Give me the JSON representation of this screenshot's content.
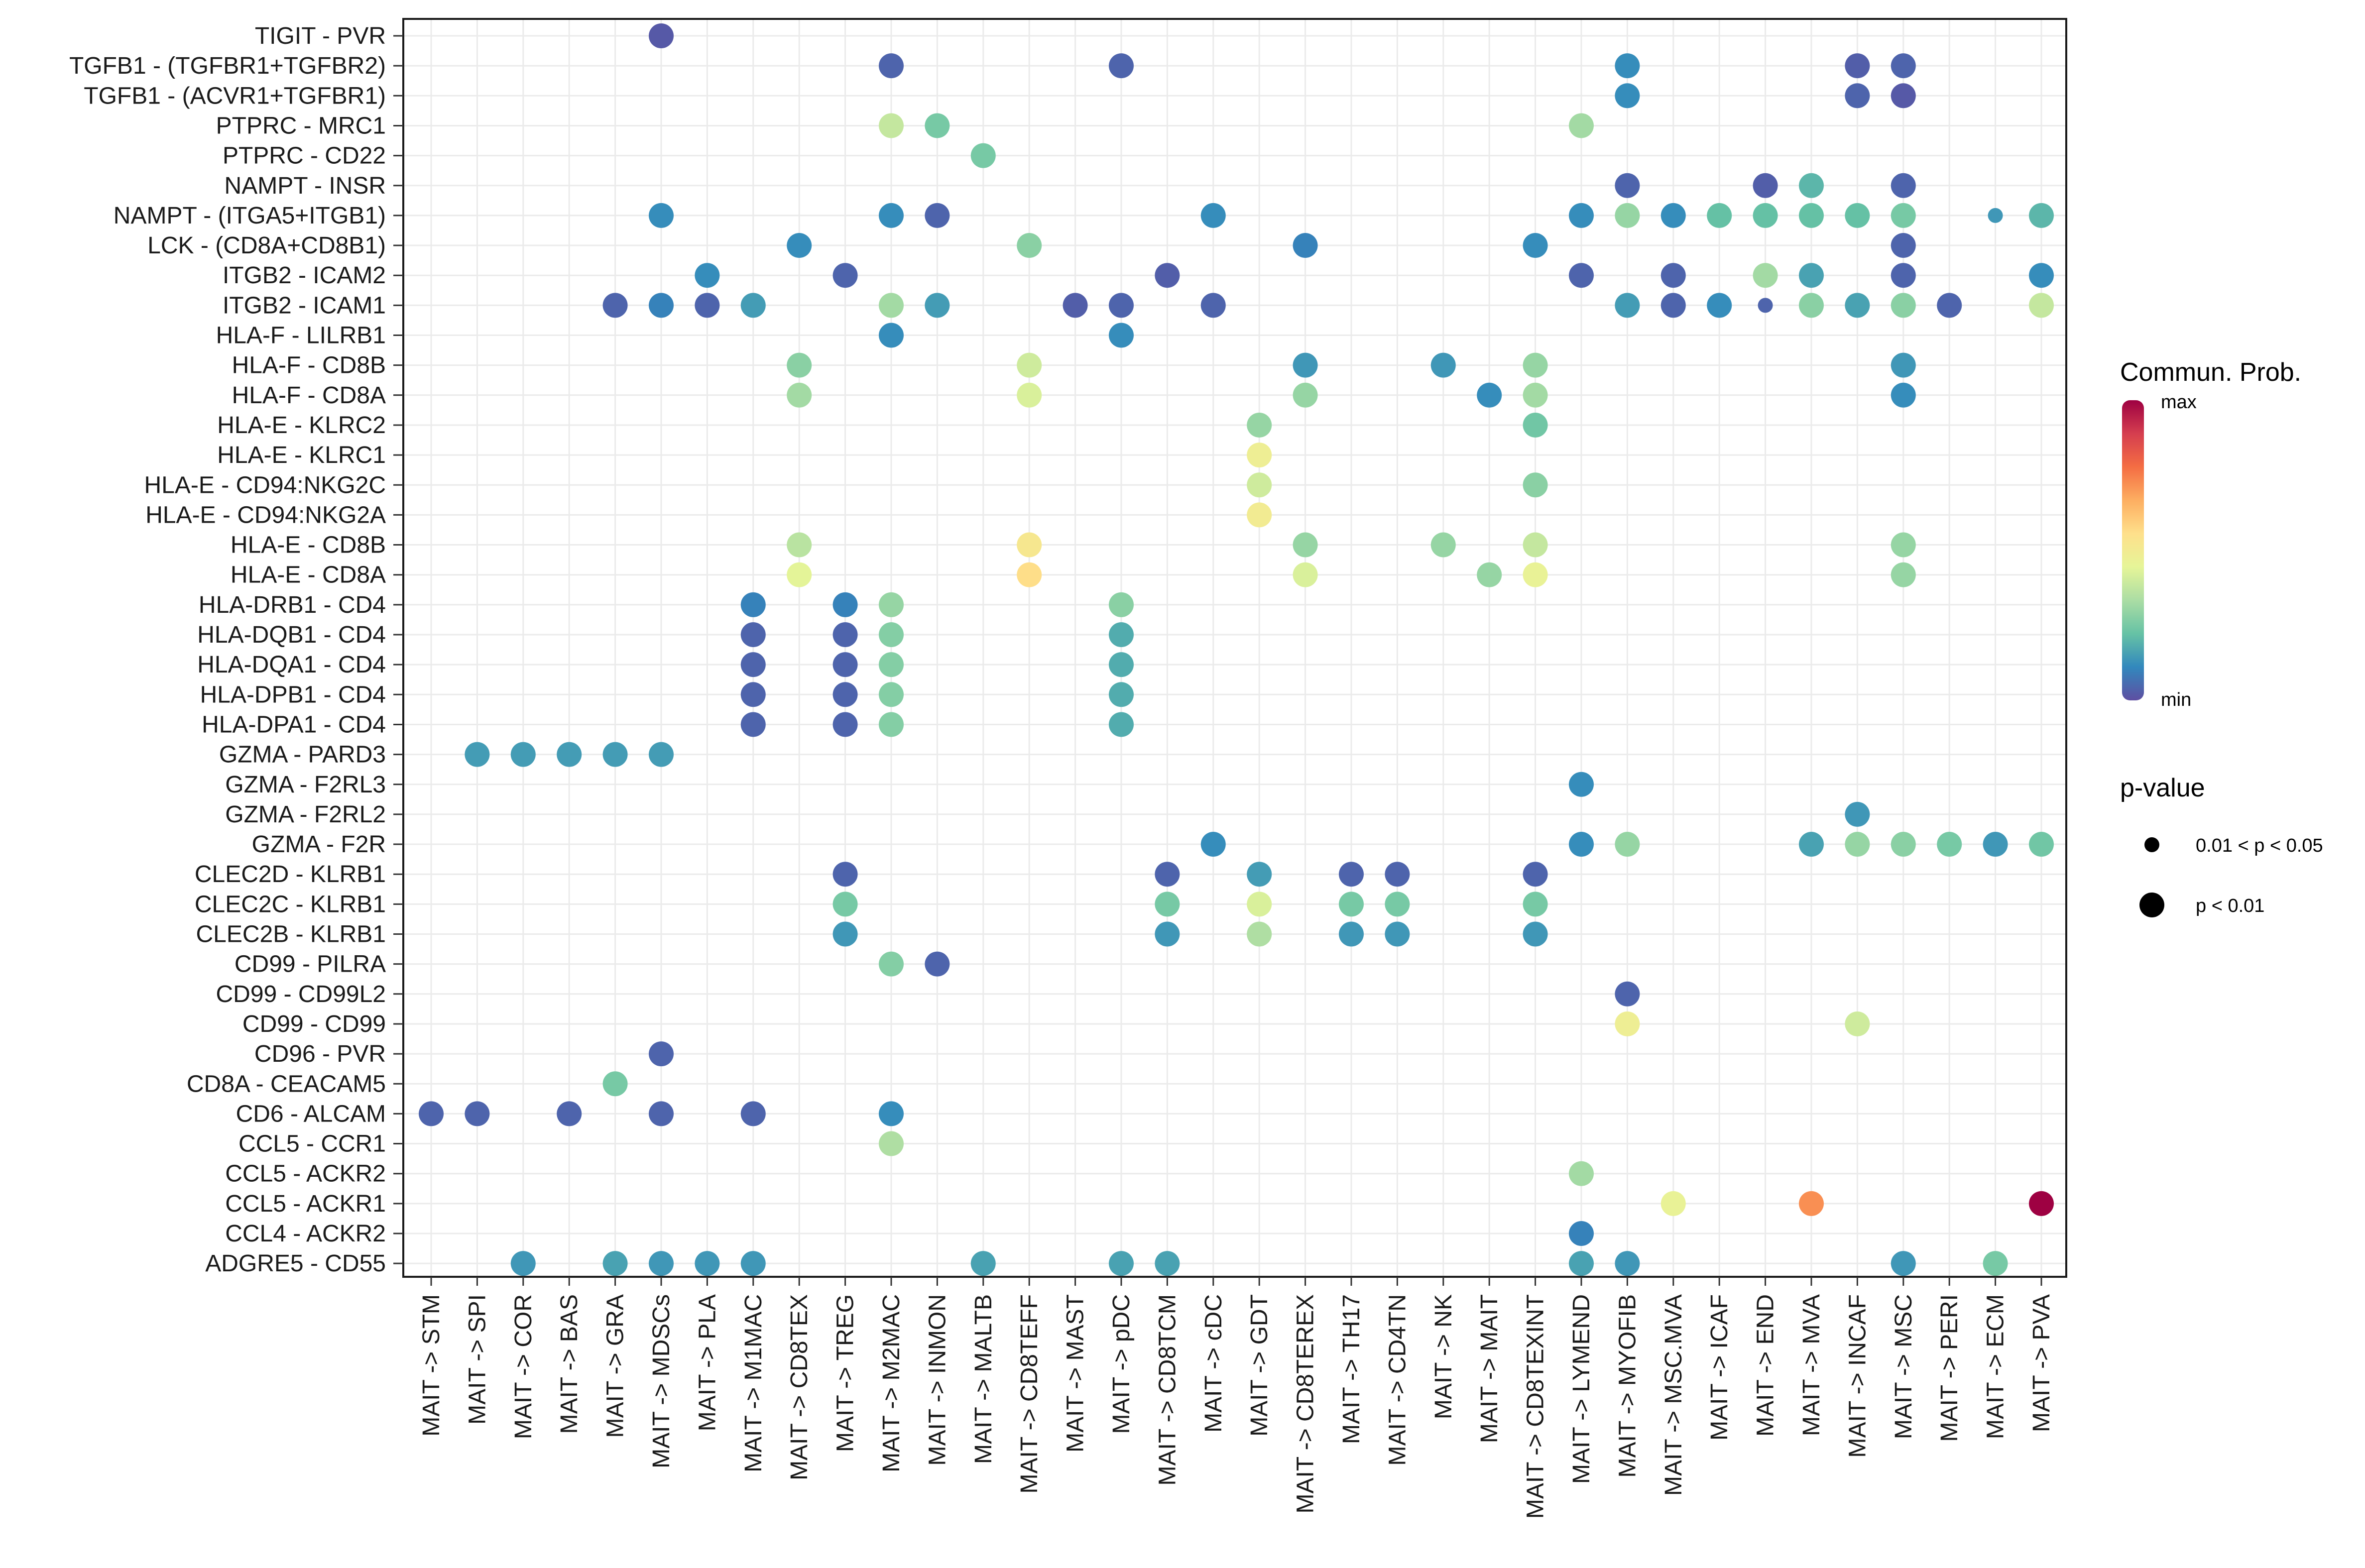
{
  "chart_data": {
    "type": "dot-plot",
    "title": "",
    "xlabel": "",
    "ylabel": "",
    "categories_x": [
      "MAIT -> STM",
      "MAIT -> SPI",
      "MAIT -> COR",
      "MAIT -> BAS",
      "MAIT -> GRA",
      "MAIT -> MDSCs",
      "MAIT -> PLA",
      "MAIT -> M1MAC",
      "MAIT -> CD8TEX",
      "MAIT -> TREG",
      "MAIT -> M2MAC",
      "MAIT -> INMON",
      "MAIT -> MALTB",
      "MAIT -> CD8TEFF",
      "MAIT -> MAST",
      "MAIT -> pDC",
      "MAIT -> CD8TCM",
      "MAIT -> cDC",
      "MAIT -> GDT",
      "MAIT -> CD8TEREX",
      "MAIT -> TH17",
      "MAIT -> CD4TN",
      "MAIT -> NK",
      "MAIT -> MAIT",
      "MAIT -> CD8TEXINT",
      "MAIT -> LYMEND",
      "MAIT -> MYOFIB",
      "MAIT -> MSC.MVA",
      "MAIT -> ICAF",
      "MAIT -> END",
      "MAIT -> MVA",
      "MAIT -> INCAF",
      "MAIT -> MSC",
      "MAIT -> PERI",
      "MAIT -> ECM",
      "MAIT -> PVA"
    ],
    "categories_y": [
      "TIGIT - PVR",
      "TGFB1 - (TGFBR1+TGFBR2)",
      "TGFB1 - (ACVR1+TGFBR1)",
      "PTPRC - MRC1",
      "PTPRC - CD22",
      "NAMPT - INSR",
      "NAMPT - (ITGA5+ITGB1)",
      "LCK - (CD8A+CD8B1)",
      "ITGB2 - ICAM2",
      "ITGB2 - ICAM1",
      "HLA-F - LILRB1",
      "HLA-F - CD8B",
      "HLA-F - CD8A",
      "HLA-E - KLRC2",
      "HLA-E - KLRC1",
      "HLA-E - CD94:NKG2C",
      "HLA-E - CD94:NKG2A",
      "HLA-E - CD8B",
      "HLA-E - CD8A",
      "HLA-DRB1 - CD4",
      "HLA-DQB1 - CD4",
      "HLA-DQA1 - CD4",
      "HLA-DPB1 - CD4",
      "HLA-DPA1 - CD4",
      "GZMA - PARD3",
      "GZMA - F2RL3",
      "GZMA - F2RL2",
      "GZMA - F2R",
      "CLEC2D - KLRB1",
      "CLEC2C - KLRB1",
      "CLEC2B - KLRB1",
      "CD99 - PILRA",
      "CD99 - CD99L2",
      "CD99 - CD99",
      "CD96 - PVR",
      "CD8A - CEACAM5",
      "CD6 - ALCAM",
      "CCL5 - CCR1",
      "CCL5 - ACKR2",
      "CCL5 - ACKR1",
      "CCL4 - ACKR2",
      "ADGRE5 - CD55"
    ],
    "value_scale": "relative communication probability, 0 = min, 1 = max",
    "points": [
      [
        5,
        0,
        0.02,
        "p<0.01"
      ],
      [
        10,
        1,
        0.04,
        "p<0.01"
      ],
      [
        15,
        1,
        0.04,
        "p<0.01"
      ],
      [
        26,
        1,
        0.12,
        "p<0.01"
      ],
      [
        31,
        1,
        0.03,
        "p<0.01"
      ],
      [
        32,
        1,
        0.04,
        "p<0.01"
      ],
      [
        26,
        2,
        0.12,
        "p<0.01"
      ],
      [
        31,
        2,
        0.04,
        "p<0.01"
      ],
      [
        32,
        2,
        0.02,
        "p<0.01"
      ],
      [
        10,
        3,
        0.38,
        "p<0.01"
      ],
      [
        11,
        3,
        0.25,
        "p<0.01"
      ],
      [
        25,
        3,
        0.32,
        "p<0.01"
      ],
      [
        12,
        4,
        0.25,
        "p<0.01"
      ],
      [
        26,
        5,
        0.04,
        "p<0.01"
      ],
      [
        29,
        5,
        0.03,
        "p<0.01"
      ],
      [
        30,
        5,
        0.2,
        "p<0.01"
      ],
      [
        32,
        5,
        0.04,
        "p<0.01"
      ],
      [
        5,
        6,
        0.12,
        "p<0.01"
      ],
      [
        10,
        6,
        0.12,
        "p<0.01"
      ],
      [
        11,
        6,
        0.04,
        "p<0.01"
      ],
      [
        17,
        6,
        0.12,
        "p<0.01"
      ],
      [
        25,
        6,
        0.12,
        "p<0.01"
      ],
      [
        26,
        6,
        0.3,
        "p<0.01"
      ],
      [
        27,
        6,
        0.12,
        "p<0.01"
      ],
      [
        28,
        6,
        0.22,
        "p<0.01"
      ],
      [
        29,
        6,
        0.22,
        "p<0.01"
      ],
      [
        30,
        6,
        0.22,
        "p<0.01"
      ],
      [
        31,
        6,
        0.22,
        "p<0.01"
      ],
      [
        32,
        6,
        0.25,
        "p<0.01"
      ],
      [
        34,
        6,
        0.14,
        "0.01<p<0.05"
      ],
      [
        35,
        6,
        0.2,
        "p<0.01"
      ],
      [
        8,
        7,
        0.12,
        "p<0.01"
      ],
      [
        13,
        7,
        0.28,
        "p<0.01"
      ],
      [
        19,
        7,
        0.1,
        "p<0.01"
      ],
      [
        24,
        7,
        0.12,
        "p<0.01"
      ],
      [
        32,
        7,
        0.04,
        "p<0.01"
      ],
      [
        6,
        8,
        0.12,
        "p<0.01"
      ],
      [
        9,
        8,
        0.04,
        "p<0.01"
      ],
      [
        16,
        8,
        0.03,
        "p<0.01"
      ],
      [
        25,
        8,
        0.04,
        "p<0.01"
      ],
      [
        27,
        8,
        0.04,
        "p<0.01"
      ],
      [
        29,
        8,
        0.32,
        "p<0.01"
      ],
      [
        30,
        8,
        0.16,
        "p<0.01"
      ],
      [
        32,
        8,
        0.04,
        "p<0.01"
      ],
      [
        35,
        8,
        0.12,
        "p<0.01"
      ],
      [
        4,
        9,
        0.04,
        "p<0.01"
      ],
      [
        5,
        9,
        0.1,
        "p<0.01"
      ],
      [
        6,
        9,
        0.04,
        "p<0.01"
      ],
      [
        7,
        9,
        0.15,
        "p<0.01"
      ],
      [
        10,
        9,
        0.32,
        "p<0.01"
      ],
      [
        11,
        9,
        0.15,
        "p<0.01"
      ],
      [
        14,
        9,
        0.03,
        "p<0.01"
      ],
      [
        15,
        9,
        0.04,
        "p<0.01"
      ],
      [
        17,
        9,
        0.04,
        "p<0.01"
      ],
      [
        26,
        9,
        0.15,
        "p<0.01"
      ],
      [
        27,
        9,
        0.04,
        "p<0.01"
      ],
      [
        28,
        9,
        0.12,
        "p<0.01"
      ],
      [
        29,
        9,
        0.04,
        "0.01<p<0.05"
      ],
      [
        30,
        9,
        0.28,
        "p<0.01"
      ],
      [
        31,
        9,
        0.16,
        "p<0.01"
      ],
      [
        32,
        9,
        0.28,
        "p<0.01"
      ],
      [
        33,
        9,
        0.04,
        "p<0.01"
      ],
      [
        35,
        9,
        0.38,
        "p<0.01"
      ],
      [
        10,
        10,
        0.12,
        "p<0.01"
      ],
      [
        15,
        10,
        0.12,
        "p<0.01"
      ],
      [
        8,
        11,
        0.28,
        "p<0.01"
      ],
      [
        13,
        11,
        0.4,
        "p<0.01"
      ],
      [
        19,
        11,
        0.14,
        "p<0.01"
      ],
      [
        22,
        11,
        0.14,
        "p<0.01"
      ],
      [
        24,
        11,
        0.3,
        "p<0.01"
      ],
      [
        32,
        11,
        0.14,
        "p<0.01"
      ],
      [
        8,
        12,
        0.32,
        "p<0.01"
      ],
      [
        13,
        12,
        0.42,
        "p<0.01"
      ],
      [
        19,
        12,
        0.3,
        "p<0.01"
      ],
      [
        23,
        12,
        0.12,
        "p<0.01"
      ],
      [
        24,
        12,
        0.32,
        "p<0.01"
      ],
      [
        32,
        12,
        0.12,
        "p<0.01"
      ],
      [
        18,
        13,
        0.3,
        "p<0.01"
      ],
      [
        24,
        13,
        0.24,
        "p<0.01"
      ],
      [
        18,
        14,
        0.48,
        "p<0.01"
      ],
      [
        18,
        15,
        0.4,
        "p<0.01"
      ],
      [
        24,
        15,
        0.28,
        "p<0.01"
      ],
      [
        18,
        16,
        0.5,
        "p<0.01"
      ],
      [
        8,
        17,
        0.36,
        "p<0.01"
      ],
      [
        13,
        17,
        0.52,
        "p<0.01"
      ],
      [
        19,
        17,
        0.3,
        "p<0.01"
      ],
      [
        22,
        17,
        0.3,
        "p<0.01"
      ],
      [
        24,
        17,
        0.38,
        "p<0.01"
      ],
      [
        32,
        17,
        0.3,
        "p<0.01"
      ],
      [
        8,
        18,
        0.44,
        "p<0.01"
      ],
      [
        13,
        18,
        0.56,
        "p<0.01"
      ],
      [
        19,
        18,
        0.42,
        "p<0.01"
      ],
      [
        23,
        18,
        0.3,
        "p<0.01"
      ],
      [
        24,
        18,
        0.46,
        "p<0.01"
      ],
      [
        32,
        18,
        0.3,
        "p<0.01"
      ],
      [
        7,
        19,
        0.1,
        "p<0.01"
      ],
      [
        9,
        19,
        0.1,
        "p<0.01"
      ],
      [
        10,
        19,
        0.3,
        "p<0.01"
      ],
      [
        15,
        19,
        0.28,
        "p<0.01"
      ],
      [
        7,
        20,
        0.04,
        "p<0.01"
      ],
      [
        9,
        20,
        0.04,
        "p<0.01"
      ],
      [
        10,
        20,
        0.27,
        "p<0.01"
      ],
      [
        15,
        20,
        0.18,
        "p<0.01"
      ],
      [
        7,
        21,
        0.04,
        "p<0.01"
      ],
      [
        9,
        21,
        0.04,
        "p<0.01"
      ],
      [
        10,
        21,
        0.27,
        "p<0.01"
      ],
      [
        15,
        21,
        0.18,
        "p<0.01"
      ],
      [
        7,
        22,
        0.04,
        "p<0.01"
      ],
      [
        9,
        22,
        0.04,
        "p<0.01"
      ],
      [
        10,
        22,
        0.27,
        "p<0.01"
      ],
      [
        15,
        22,
        0.18,
        "p<0.01"
      ],
      [
        7,
        23,
        0.04,
        "p<0.01"
      ],
      [
        9,
        23,
        0.04,
        "p<0.01"
      ],
      [
        10,
        23,
        0.27,
        "p<0.01"
      ],
      [
        15,
        23,
        0.18,
        "p<0.01"
      ],
      [
        1,
        24,
        0.15,
        "p<0.01"
      ],
      [
        2,
        24,
        0.15,
        "p<0.01"
      ],
      [
        3,
        24,
        0.15,
        "p<0.01"
      ],
      [
        4,
        24,
        0.15,
        "p<0.01"
      ],
      [
        5,
        24,
        0.15,
        "p<0.01"
      ],
      [
        25,
        25,
        0.12,
        "p<0.01"
      ],
      [
        31,
        26,
        0.14,
        "p<0.01"
      ],
      [
        17,
        27,
        0.12,
        "p<0.01"
      ],
      [
        25,
        27,
        0.12,
        "p<0.01"
      ],
      [
        26,
        27,
        0.3,
        "p<0.01"
      ],
      [
        30,
        27,
        0.16,
        "p<0.01"
      ],
      [
        31,
        27,
        0.3,
        "p<0.01"
      ],
      [
        32,
        27,
        0.28,
        "p<0.01"
      ],
      [
        33,
        27,
        0.25,
        "p<0.01"
      ],
      [
        34,
        27,
        0.14,
        "p<0.01"
      ],
      [
        35,
        27,
        0.24,
        "p<0.01"
      ],
      [
        9,
        28,
        0.04,
        "p<0.01"
      ],
      [
        16,
        28,
        0.04,
        "p<0.01"
      ],
      [
        18,
        28,
        0.15,
        "p<0.01"
      ],
      [
        20,
        28,
        0.04,
        "p<0.01"
      ],
      [
        21,
        28,
        0.04,
        "p<0.01"
      ],
      [
        24,
        28,
        0.04,
        "p<0.01"
      ],
      [
        9,
        29,
        0.25,
        "p<0.01"
      ],
      [
        16,
        29,
        0.25,
        "p<0.01"
      ],
      [
        18,
        29,
        0.42,
        "p<0.01"
      ],
      [
        20,
        29,
        0.25,
        "p<0.01"
      ],
      [
        21,
        29,
        0.25,
        "p<0.01"
      ],
      [
        24,
        29,
        0.25,
        "p<0.01"
      ],
      [
        9,
        30,
        0.14,
        "p<0.01"
      ],
      [
        16,
        30,
        0.14,
        "p<0.01"
      ],
      [
        18,
        30,
        0.34,
        "p<0.01"
      ],
      [
        20,
        30,
        0.14,
        "p<0.01"
      ],
      [
        21,
        30,
        0.14,
        "p<0.01"
      ],
      [
        24,
        30,
        0.14,
        "p<0.01"
      ],
      [
        10,
        31,
        0.27,
        "p<0.01"
      ],
      [
        11,
        31,
        0.04,
        "p<0.01"
      ],
      [
        26,
        32,
        0.04,
        "p<0.01"
      ],
      [
        26,
        33,
        0.48,
        "p<0.01"
      ],
      [
        31,
        33,
        0.4,
        "p<0.01"
      ],
      [
        5,
        34,
        0.04,
        "p<0.01"
      ],
      [
        4,
        35,
        0.25,
        "p<0.01"
      ],
      [
        0,
        36,
        0.04,
        "p<0.01"
      ],
      [
        1,
        36,
        0.04,
        "p<0.01"
      ],
      [
        3,
        36,
        0.04,
        "p<0.01"
      ],
      [
        5,
        36,
        0.04,
        "p<0.01"
      ],
      [
        7,
        36,
        0.04,
        "p<0.01"
      ],
      [
        10,
        36,
        0.12,
        "p<0.01"
      ],
      [
        10,
        37,
        0.34,
        "p<0.01"
      ],
      [
        25,
        38,
        0.32,
        "p<0.01"
      ],
      [
        27,
        39,
        0.46,
        "p<0.01"
      ],
      [
        30,
        39,
        0.72,
        "p<0.01"
      ],
      [
        35,
        39,
        1.0,
        "p<0.01"
      ],
      [
        25,
        40,
        0.1,
        "p<0.01"
      ],
      [
        2,
        41,
        0.14,
        "p<0.01"
      ],
      [
        4,
        41,
        0.16,
        "p<0.01"
      ],
      [
        5,
        41,
        0.14,
        "p<0.01"
      ],
      [
        6,
        41,
        0.14,
        "p<0.01"
      ],
      [
        7,
        41,
        0.14,
        "p<0.01"
      ],
      [
        12,
        41,
        0.16,
        "p<0.01"
      ],
      [
        15,
        41,
        0.16,
        "p<0.01"
      ],
      [
        16,
        41,
        0.16,
        "p<0.01"
      ],
      [
        25,
        41,
        0.16,
        "p<0.01"
      ],
      [
        26,
        41,
        0.14,
        "p<0.01"
      ],
      [
        32,
        41,
        0.14,
        "p<0.01"
      ],
      [
        34,
        41,
        0.25,
        "p<0.01"
      ]
    ],
    "legend": {
      "color_title": "Commun. Prob.",
      "color_max_label": "max",
      "color_min_label": "min",
      "size_title": "p-value",
      "size_labels": [
        "0.01 < p < 0.05",
        "p < 0.01"
      ],
      "placement": "right"
    },
    "colors": {
      "palette": [
        "#5e4fa2",
        "#3288bd",
        "#66c2a5",
        "#abdda4",
        "#e6f598",
        "#fee08b",
        "#fdae61",
        "#f46d43",
        "#d53e4f",
        "#9e0142"
      ],
      "panel_border": "#1a1a1a",
      "grid": "#ebebeb",
      "text": "#1a1a1a"
    }
  }
}
